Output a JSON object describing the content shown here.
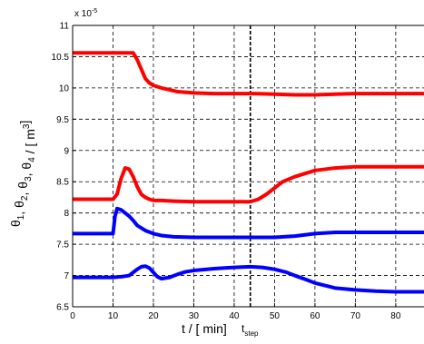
{
  "chart_data": {
    "type": "line",
    "xlabel": "t / [ min]",
    "ylabel": "θ1, θ2, θ3, θ4 / [ m3]",
    "y_exponent": "x 10-5",
    "xlim": [
      0,
      87
    ],
    "ylim": [
      6.5,
      11
    ],
    "xticks": [
      0,
      10,
      20,
      30,
      40,
      50,
      60,
      70,
      80
    ],
    "yticks": [
      6.5,
      7,
      7.5,
      8,
      8.5,
      9,
      9.5,
      10,
      10.5,
      11
    ],
    "grid": true,
    "vline": {
      "x": 44,
      "label": "tstep"
    },
    "series": [
      {
        "color": "#ff0000",
        "x": [
          0,
          15,
          16,
          17,
          18,
          19,
          20,
          22,
          24,
          26,
          30,
          35,
          40,
          45,
          50,
          55,
          60,
          65,
          70,
          75,
          80,
          87
        ],
        "y": [
          10.56,
          10.56,
          10.45,
          10.3,
          10.15,
          10.08,
          10.04,
          10.0,
          9.97,
          9.94,
          9.92,
          9.91,
          9.91,
          9.91,
          9.9,
          9.89,
          9.89,
          9.9,
          9.91,
          9.91,
          9.91,
          9.91
        ]
      },
      {
        "color": "#ff0000",
        "x": [
          0,
          10,
          11,
          12,
          13,
          14,
          15,
          16,
          17,
          18,
          19,
          20,
          22,
          25,
          30,
          35,
          40,
          44,
          46,
          48,
          50,
          52,
          55,
          58,
          60,
          65,
          70,
          75,
          80,
          87
        ],
        "y": [
          8.22,
          8.22,
          8.3,
          8.55,
          8.72,
          8.7,
          8.58,
          8.42,
          8.3,
          8.25,
          8.22,
          8.2,
          8.2,
          8.19,
          8.18,
          8.18,
          8.18,
          8.18,
          8.22,
          8.3,
          8.4,
          8.5,
          8.58,
          8.64,
          8.68,
          8.72,
          8.74,
          8.74,
          8.74,
          8.74
        ]
      },
      {
        "color": "#0000ff",
        "x": [
          0,
          10,
          10.5,
          11,
          12,
          13,
          14,
          15,
          16,
          18,
          20,
          22,
          25,
          30,
          35,
          40,
          45,
          50,
          55,
          60,
          65,
          70,
          75,
          80,
          87
        ],
        "y": [
          7.67,
          7.67,
          7.95,
          8.07,
          8.05,
          8.0,
          7.95,
          7.88,
          7.8,
          7.72,
          7.67,
          7.64,
          7.62,
          7.61,
          7.61,
          7.61,
          7.61,
          7.61,
          7.63,
          7.67,
          7.69,
          7.69,
          7.69,
          7.69,
          7.69
        ]
      },
      {
        "color": "#0000ff",
        "x": [
          0,
          10,
          12,
          14,
          15,
          16,
          17,
          18,
          19,
          20,
          21,
          22,
          24,
          26,
          28,
          30,
          35,
          40,
          44,
          47,
          50,
          53,
          55,
          58,
          60,
          65,
          70,
          75,
          80,
          87
        ],
        "y": [
          6.97,
          6.97,
          6.98,
          7.0,
          7.05,
          7.1,
          7.14,
          7.15,
          7.12,
          7.05,
          6.98,
          6.95,
          6.97,
          7.02,
          7.06,
          7.08,
          7.11,
          7.13,
          7.14,
          7.13,
          7.1,
          7.05,
          7.0,
          6.93,
          6.88,
          6.8,
          6.77,
          6.75,
          6.74,
          6.74
        ]
      }
    ]
  }
}
